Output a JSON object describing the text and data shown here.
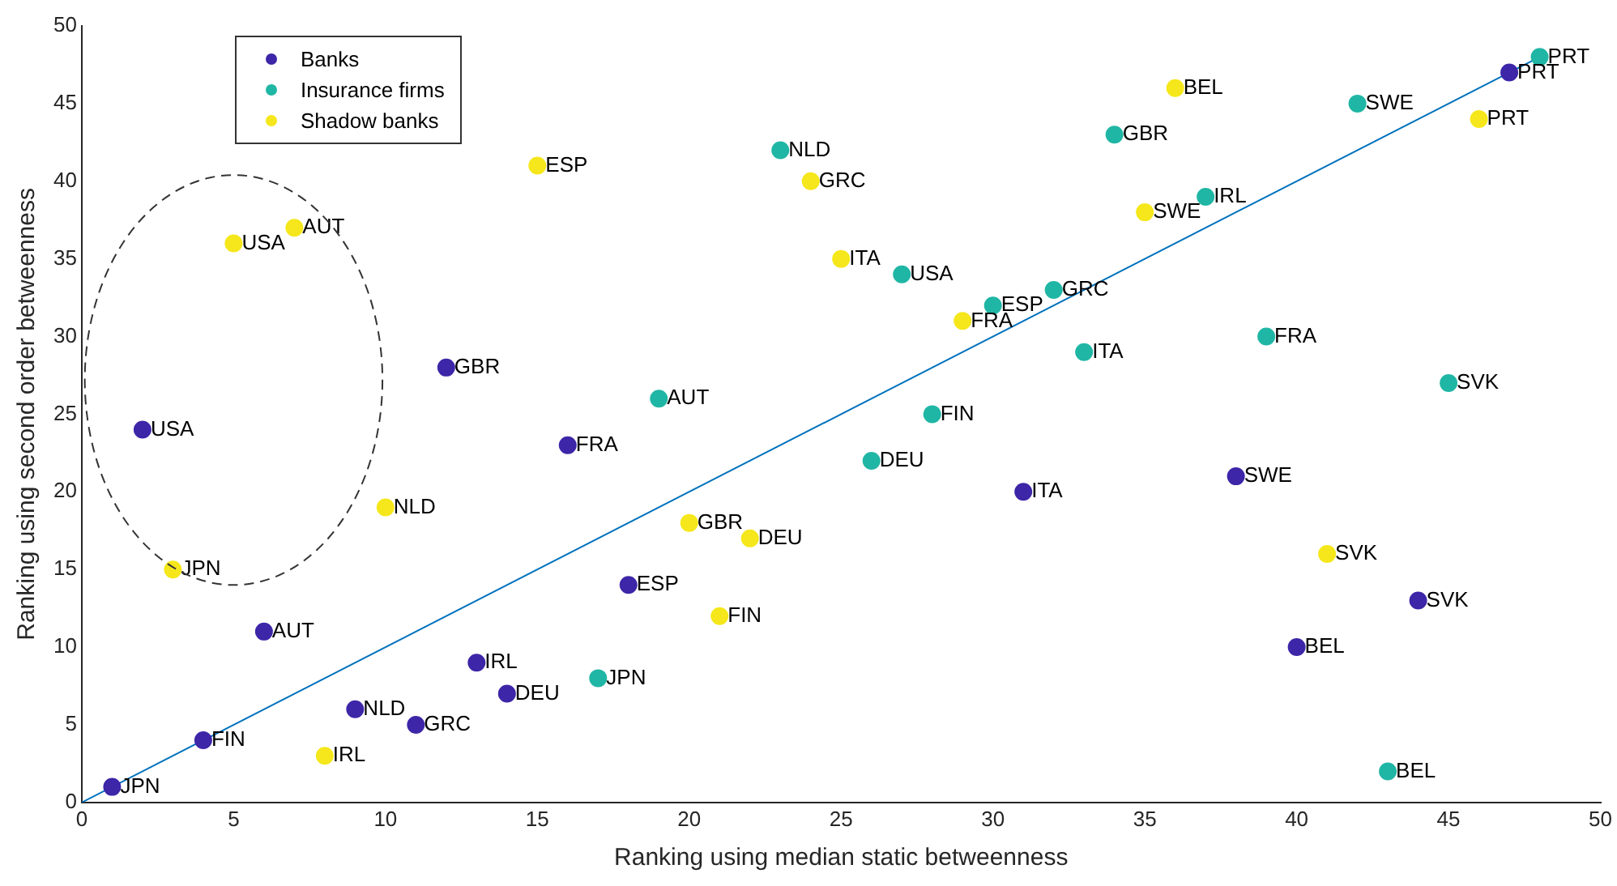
{
  "chart_data": {
    "type": "scatter",
    "xlabel": "Ranking using median static betweenness",
    "ylabel": "Ranking using second order betweenness",
    "xlim": [
      0,
      50
    ],
    "ylim": [
      0,
      50
    ],
    "xticks": [
      0,
      5,
      10,
      15,
      20,
      25,
      30,
      35,
      40,
      45,
      50
    ],
    "yticks": [
      0,
      5,
      10,
      15,
      20,
      25,
      30,
      35,
      40,
      45,
      50
    ],
    "grid": false,
    "legend": "top left",
    "marker": "circle",
    "series": [
      {
        "name": "Banks",
        "color": "#3e26a8",
        "x": [
          1,
          4,
          9,
          11,
          13,
          14,
          6,
          18,
          2,
          16,
          12,
          31,
          38,
          40,
          44,
          47
        ],
        "values": [
          1,
          4,
          6,
          5,
          9,
          7,
          11,
          14,
          24,
          23,
          28,
          20,
          21,
          10,
          13,
          47
        ],
        "value_labels": [
          "JPN",
          "FIN",
          "NLD",
          "GRC",
          "IRL",
          "DEU",
          "AUT",
          "ESP",
          "USA",
          "FRA",
          "GBR",
          "ITA",
          "SWE",
          "BEL",
          "SVK",
          "PRT"
        ]
      },
      {
        "name": "Insurance firms",
        "color": "#20b6a5",
        "x": [
          48,
          42,
          34,
          23,
          37,
          27,
          32,
          30,
          33,
          39,
          45,
          19,
          28,
          26,
          17,
          43
        ],
        "values": [
          48,
          45,
          43,
          42,
          39,
          34,
          33,
          32,
          29,
          30,
          27,
          26,
          25,
          22,
          8,
          2
        ],
        "value_labels": [
          "PRT",
          "SWE",
          "GBR",
          "NLD",
          "IRL",
          "USA",
          "GRC",
          "ESP",
          "ITA",
          "FRA",
          "SVK",
          "AUT",
          "FIN",
          "DEU",
          "JPN",
          "BEL"
        ]
      },
      {
        "name": "Shadow banks",
        "color": "#f5e71b",
        "x": [
          36,
          46,
          15,
          24,
          35,
          7,
          5,
          25,
          29,
          10,
          20,
          22,
          3,
          41,
          21,
          8
        ],
        "values": [
          46,
          44,
          41,
          40,
          38,
          37,
          36,
          35,
          31,
          19,
          18,
          17,
          15,
          16,
          12,
          3
        ],
        "value_labels": [
          "BEL",
          "PRT",
          "ESP",
          "GRC",
          "SWE",
          "AUT",
          "USA",
          "ITA",
          "FRA",
          "NLD",
          "GBR",
          "DEU",
          "JPN",
          "SVK",
          "FIN",
          "IRL"
        ]
      },
      {
        "type": "line",
        "marker": "none",
        "color": "#0072bd",
        "x": [
          0,
          48
        ],
        "values": [
          0,
          48
        ]
      }
    ]
  }
}
